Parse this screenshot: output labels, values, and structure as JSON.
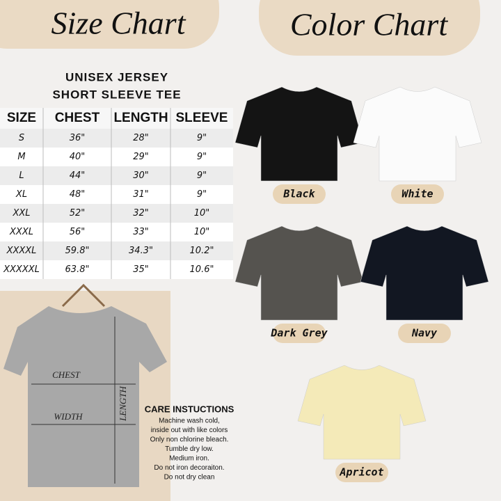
{
  "size_chart": {
    "heading": "Size Chart",
    "title": [
      "UNISEX JERSEY",
      "SHORT SLEEVE TEE"
    ],
    "table": {
      "header": [
        "SIZE",
        "CHEST",
        "LENGTH",
        "SLEEVE"
      ],
      "rows": [
        [
          "S",
          "36\"",
          "28\"",
          "9\""
        ],
        [
          "M",
          "40\"",
          "29\"",
          "9\""
        ],
        [
          "L",
          "44\"",
          "30\"",
          "9\""
        ],
        [
          "XL",
          "48\"",
          "31\"",
          "9\""
        ],
        [
          "XXL",
          "52\"",
          "32\"",
          "10\""
        ],
        [
          "XXXL",
          "56\"",
          "33\"",
          "10\""
        ],
        [
          "XXXXL",
          "59.8\"",
          "34.3\"",
          "10.2\""
        ],
        [
          "XXXXXL",
          "63.8\"",
          "35\"",
          "10.6\""
        ]
      ]
    }
  },
  "diagram": {
    "chest": "CHEST",
    "width": "WIDTH",
    "length": "LENGTH"
  },
  "care": {
    "title": "CARE INSTUCTIONS",
    "lines": [
      "Machine wash cold,",
      "inside out with like colors",
      "Only non chlorine bleach.",
      "Tumble dry low.",
      "Medium iron.",
      "Do not iron decoraiton.",
      "Do not dry clean"
    ]
  },
  "color_chart": {
    "heading": "Color Chart",
    "colors": [
      {
        "name": "Black",
        "color": "#141414"
      },
      {
        "name": "White",
        "color": "#fbfbfb"
      },
      {
        "name": "Dark Grey",
        "color": "#55534f"
      },
      {
        "name": "Navy",
        "color": "#121722"
      },
      {
        "name": "Apricot",
        "color": "#f4eab8"
      }
    ]
  }
}
